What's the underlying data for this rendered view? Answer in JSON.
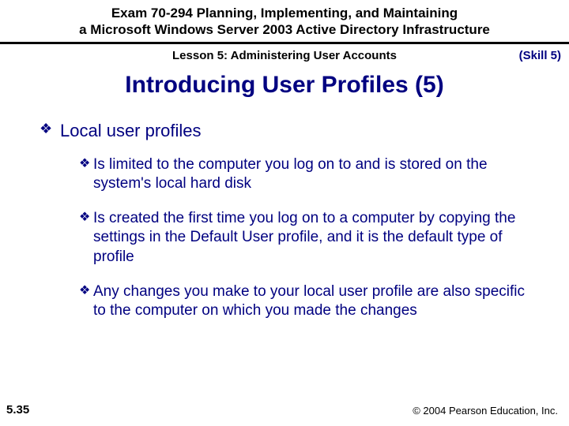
{
  "header": {
    "line1": "Exam 70-294 Planning, Implementing, and Maintaining",
    "line2": "a Microsoft Windows Server 2003 Active Directory Infrastructure"
  },
  "lesson": "Lesson 5: Administering User Accounts",
  "skill": "(Skill 5)",
  "title": "Introducing User Profiles (5)",
  "bullet_glyph": "❖",
  "content": {
    "top_item": "Local user profiles",
    "sub_items": [
      "Is limited to the computer you log on to and is stored on the system's local hard disk",
      "Is created the first time you log on to a computer by copying the settings in the Default User profile, and it is the default type of profile",
      "Any changes you make to your local user profile are also specific to the computer on which you made the changes"
    ]
  },
  "pagenum": "5.35",
  "copyright": "© 2004 Pearson Education, Inc.",
  "colors": {
    "navy": "#000080",
    "black": "#000000",
    "bg": "#ffffff"
  },
  "typography": {
    "header_fontsize": 17,
    "lesson_fontsize": 15,
    "title_fontsize": 30,
    "top_item_fontsize": 22,
    "sub_item_fontsize": 19,
    "footer_fontsize": 13
  }
}
